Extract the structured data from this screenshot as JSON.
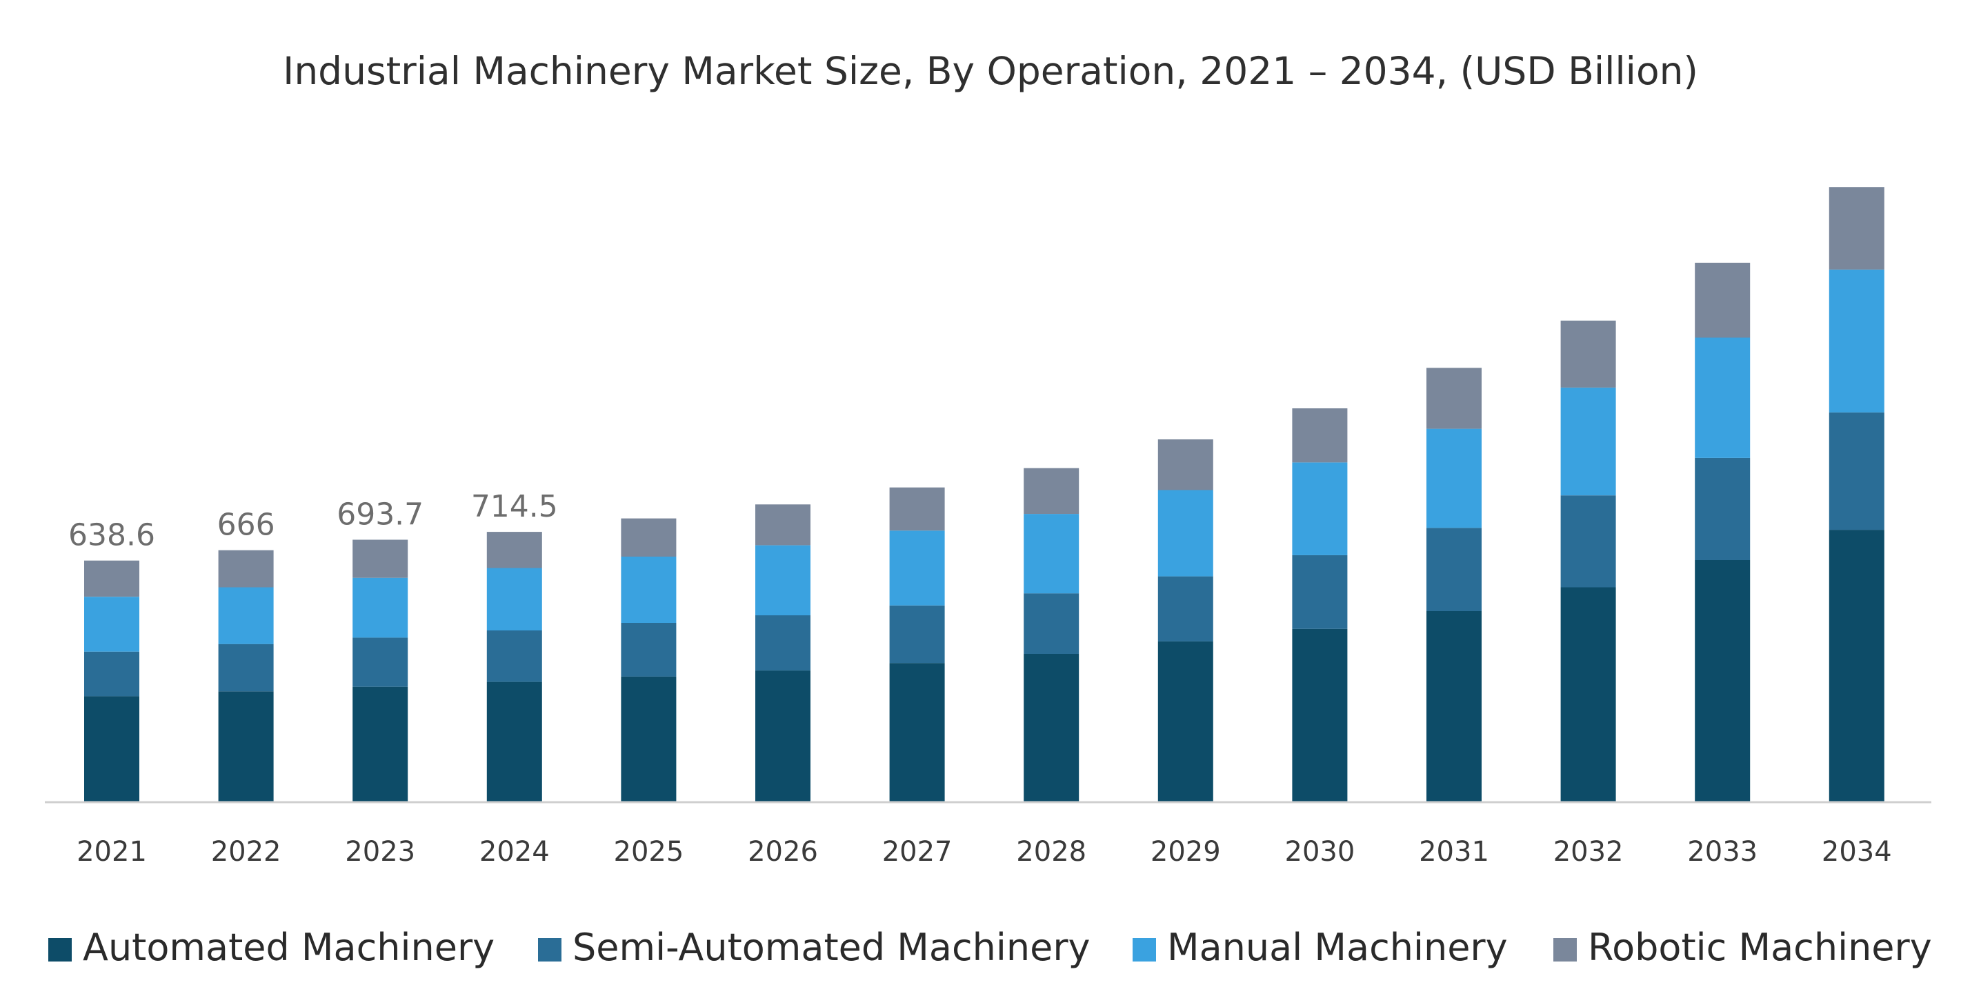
{
  "chart_data": {
    "type": "bar",
    "stacked": true,
    "title": "Industrial Machinery Market Size, By Operation, 2021 – 2034, (USD Billion)",
    "xlabel": "",
    "ylabel": "",
    "ylim": [
      0,
      1650
    ],
    "grid": false,
    "legend_position": "bottom",
    "categories": [
      "2021",
      "2022",
      "2023",
      "2024",
      "2025",
      "2026",
      "2027",
      "2028",
      "2029",
      "2030",
      "2031",
      "2032",
      "2033",
      "2034"
    ],
    "series": [
      {
        "name": "Automated Machinery",
        "color": "#0d4c68",
        "values": [
          280,
          293,
          305,
          318,
          332,
          348,
          368,
          392,
          425,
          458,
          505,
          568,
          640,
          720
        ]
      },
      {
        "name": "Semi-Automated Machinery",
        "color": "#2a6d96",
        "values": [
          118,
          125,
          130,
          136,
          142,
          146,
          152,
          160,
          172,
          195,
          220,
          243,
          270,
          310
        ]
      },
      {
        "name": "Manual Machinery",
        "color": "#3aa2e0",
        "values": [
          145,
          150,
          158,
          165,
          175,
          185,
          198,
          210,
          228,
          245,
          262,
          285,
          318,
          378
        ]
      },
      {
        "name": "Robotic Machinery",
        "color": "#7a879b",
        "values": [
          95.6,
          98,
          100.7,
          95.5,
          101,
          108,
          114,
          121,
          134,
          143,
          161,
          177,
          198,
          218
        ]
      }
    ],
    "totals": [
      638.6,
      666,
      693.7,
      714.5,
      750,
      787,
      832,
      883,
      959,
      1041,
      1148,
      1273,
      1426,
      1626
    ],
    "data_labels": [
      {
        "category": "2021",
        "text": "638.6"
      },
      {
        "category": "2022",
        "text": "666"
      },
      {
        "category": "2023",
        "text": "693.7"
      },
      {
        "category": "2024",
        "text": "714.5"
      }
    ]
  }
}
